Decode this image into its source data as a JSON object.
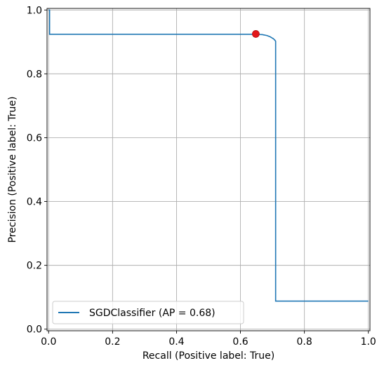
{
  "chart_data": {
    "type": "line",
    "title": "",
    "xlabel": "Recall (Positive label: True)",
    "ylabel": "Precision (Positive label: True)",
    "xlim": [
      -0.005,
      1.005
    ],
    "ylim": [
      -0.005,
      1.005
    ],
    "grid": true,
    "xticks": [
      0.0,
      0.2,
      0.4,
      0.6,
      0.8,
      1.0
    ],
    "yticks": [
      0.0,
      0.2,
      0.4,
      0.6,
      0.8,
      1.0
    ],
    "xtick_labels": [
      "0.0",
      "0.2",
      "0.4",
      "0.6",
      "0.8",
      "1.0"
    ],
    "ytick_labels": [
      "0.0",
      "0.2",
      "0.4",
      "0.6",
      "0.8",
      "1.0"
    ],
    "legend_position": "lower-left",
    "series": [
      {
        "name": "SGDClassifier (AP = 0.68)",
        "color": "#1f77b4",
        "x": [
          1.0,
          0.71,
          0.71,
          0.708,
          0.703,
          0.698,
          0.693,
          0.688,
          0.683,
          0.678,
          0.673,
          0.668,
          0.663,
          0.658,
          0.648,
          0.62,
          0.5,
          0.3,
          0.1,
          0.003,
          0.003,
          0.0
        ],
        "y": [
          0.088,
          0.088,
          0.902,
          0.905,
          0.91,
          0.913,
          0.916,
          0.918,
          0.92,
          0.921,
          0.922,
          0.923,
          0.923,
          0.924,
          0.924,
          0.924,
          0.924,
          0.924,
          0.924,
          0.924,
          1.0,
          1.0
        ]
      }
    ],
    "marker": {
      "x": 0.648,
      "y": 0.925,
      "color": "#e3171a"
    }
  }
}
